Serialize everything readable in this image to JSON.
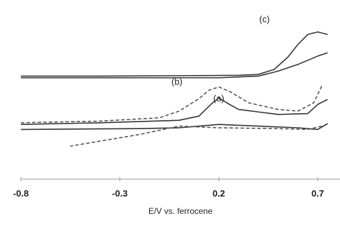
{
  "chart_data": {
    "type": "line",
    "title": "",
    "xlabel": "E/V vs. ferrocene",
    "ylabel": "",
    "xlim": [
      -0.8,
      0.75
    ],
    "x_ticks": [
      -0.8,
      -0.3,
      0.2,
      0.7
    ],
    "x_tick_labels": [
      "-0.8",
      "-0.3",
      "0.2",
      "0.7"
    ],
    "grid": false,
    "curve_labels": [
      "(a)",
      "(b)",
      "(c)"
    ],
    "series": [
      {
        "name": "(c)",
        "color": "#333333",
        "style": "solid",
        "forward": [
          [
            -0.8,
            0.62
          ],
          [
            -0.4,
            0.62
          ],
          [
            0.0,
            0.625
          ],
          [
            0.3,
            0.63
          ],
          [
            0.4,
            0.64
          ],
          [
            0.48,
            0.7
          ],
          [
            0.55,
            0.85
          ],
          [
            0.6,
            1.0
          ],
          [
            0.65,
            1.12
          ],
          [
            0.7,
            1.15
          ],
          [
            0.75,
            1.12
          ]
        ],
        "reverse": [
          [
            0.75,
            0.9
          ],
          [
            0.7,
            0.86
          ],
          [
            0.6,
            0.76
          ],
          [
            0.5,
            0.68
          ],
          [
            0.4,
            0.62
          ],
          [
            0.2,
            0.6
          ],
          [
            0.0,
            0.6
          ],
          [
            -0.4,
            0.6
          ],
          [
            -0.8,
            0.6
          ]
        ]
      },
      {
        "name": "(a)",
        "color": "#333333",
        "style": "solid",
        "forward": [
          [
            -0.8,
            0.04
          ],
          [
            -0.4,
            0.06
          ],
          [
            0.0,
            0.09
          ],
          [
            0.1,
            0.14
          ],
          [
            0.16,
            0.28
          ],
          [
            0.2,
            0.36
          ],
          [
            0.24,
            0.3
          ],
          [
            0.3,
            0.22
          ],
          [
            0.5,
            0.16
          ],
          [
            0.65,
            0.17
          ],
          [
            0.7,
            0.28
          ],
          [
            0.75,
            0.34
          ]
        ],
        "reverse": [
          [
            0.75,
            0.05
          ],
          [
            0.7,
            -0.02
          ],
          [
            0.6,
            0.0
          ],
          [
            0.4,
            0.02
          ],
          [
            0.2,
            0.04
          ],
          [
            0.0,
            0.0
          ],
          [
            -0.2,
            -0.01
          ],
          [
            -0.8,
            -0.02
          ]
        ]
      },
      {
        "name": "(b)",
        "color": "#555555",
        "style": "dashed",
        "forward": [
          [
            -0.8,
            0.06
          ],
          [
            -0.4,
            0.08
          ],
          [
            -0.1,
            0.12
          ],
          [
            0.0,
            0.2
          ],
          [
            0.1,
            0.35
          ],
          [
            0.15,
            0.45
          ],
          [
            0.2,
            0.49
          ],
          [
            0.26,
            0.43
          ],
          [
            0.35,
            0.3
          ],
          [
            0.5,
            0.22
          ],
          [
            0.6,
            0.2
          ],
          [
            0.68,
            0.3
          ],
          [
            0.72,
            0.5
          ]
        ],
        "reverse": [
          [
            0.72,
            0.02
          ],
          [
            0.65,
            -0.02
          ],
          [
            0.5,
            -0.01
          ],
          [
            0.2,
            0.0
          ],
          [
            0.0,
            0.02
          ],
          [
            -0.2,
            -0.08
          ],
          [
            -0.4,
            -0.16
          ],
          [
            -0.55,
            -0.22
          ]
        ]
      }
    ]
  }
}
